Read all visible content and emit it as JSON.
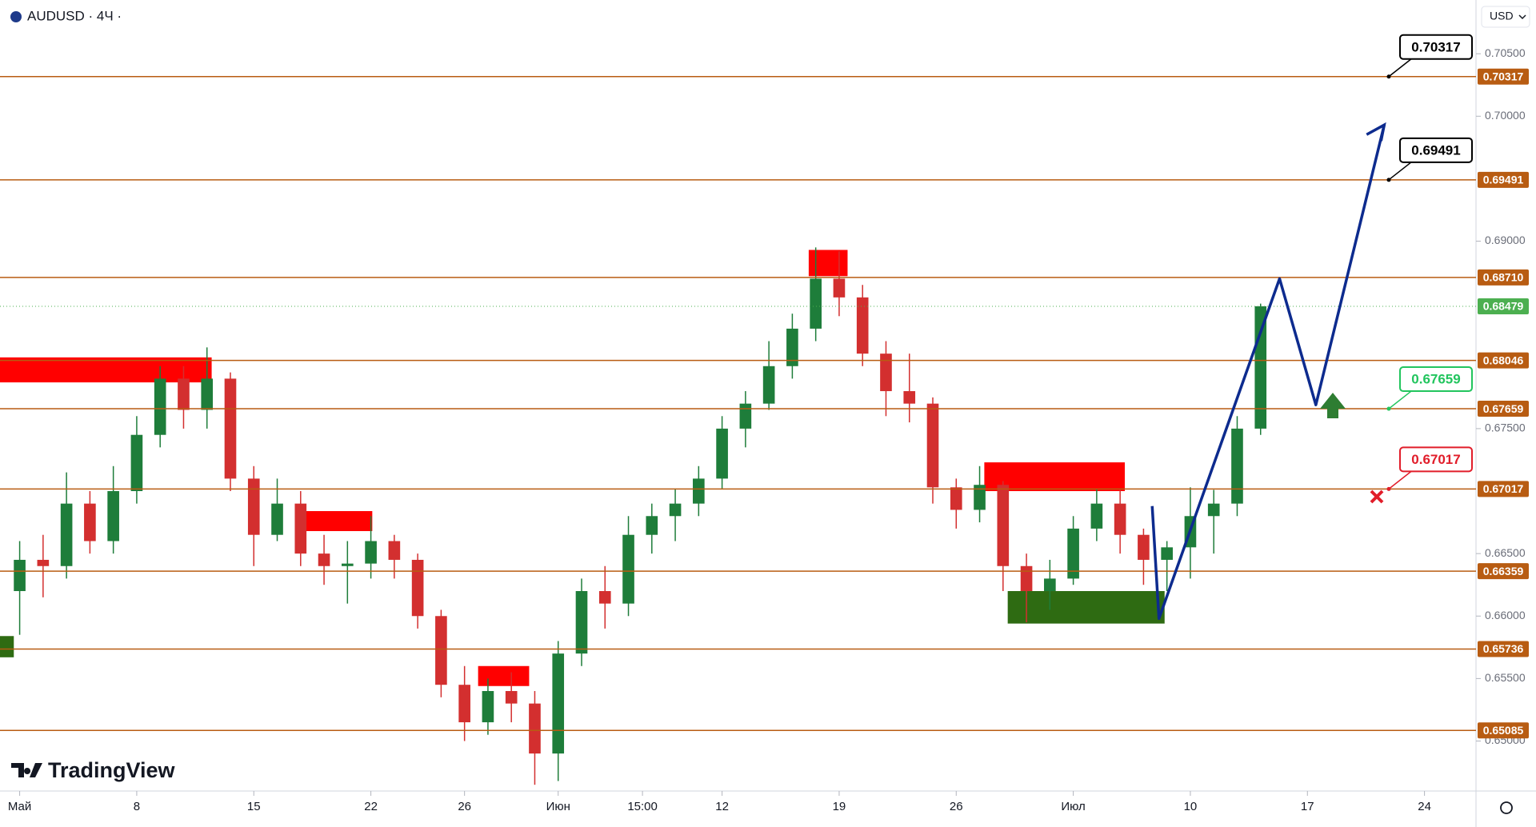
{
  "header": {
    "symbol": "AUDUSD · 4Ч ·",
    "currency": "USD",
    "brand": "TradingView"
  },
  "chart_data": {
    "type": "candlestick",
    "xlim": [
      -0.84,
      62.2
    ],
    "ylim": [
      0.646,
      0.7093
    ],
    "xticks": [
      {
        "value": 0,
        "label": "Май"
      },
      {
        "value": 5,
        "label": "8"
      },
      {
        "value": 10,
        "label": "15"
      },
      {
        "value": 15,
        "label": "22"
      },
      {
        "value": 19,
        "label": "26"
      },
      {
        "value": 23,
        "label": "Июн"
      },
      {
        "value": 26.6,
        "label": "15:00"
      },
      {
        "value": 30,
        "label": "12"
      },
      {
        "value": 35,
        "label": "19"
      },
      {
        "value": 40,
        "label": "26"
      },
      {
        "value": 45,
        "label": "Июл"
      },
      {
        "value": 50,
        "label": "10"
      },
      {
        "value": 55,
        "label": "17"
      },
      {
        "value": 60,
        "label": "24"
      }
    ],
    "yticks": [
      {
        "value": 0.705,
        "label": "0.70500"
      },
      {
        "value": 0.7,
        "label": "0.70000"
      },
      {
        "value": 0.69,
        "label": "0.69000"
      },
      {
        "value": 0.675,
        "label": "0.67500"
      },
      {
        "value": 0.665,
        "label": "0.66500"
      },
      {
        "value": 0.66,
        "label": "0.66000"
      },
      {
        "value": 0.655,
        "label": "0.65500"
      },
      {
        "value": 0.65,
        "label": "0.65000"
      }
    ],
    "up_color": "#1e7d3a",
    "down_color": "#d32f2f",
    "x": [
      0,
      1,
      2,
      3,
      4,
      5,
      6,
      7,
      8,
      9,
      10,
      11,
      12,
      13,
      14,
      15,
      16,
      17,
      18,
      19,
      20,
      21,
      22,
      23,
      24,
      25,
      26,
      27,
      28,
      29,
      30,
      31,
      32,
      33,
      34,
      35,
      36,
      37,
      38,
      39,
      40,
      41,
      42,
      43,
      44,
      45,
      46,
      47,
      48,
      49,
      50,
      51,
      52,
      53
    ],
    "ohlc": [
      [
        0.662,
        0.666,
        0.6585,
        0.6645
      ],
      [
        0.6645,
        0.6665,
        0.6615,
        0.664
      ],
      [
        0.664,
        0.6715,
        0.663,
        0.669
      ],
      [
        0.669,
        0.67,
        0.665,
        0.666
      ],
      [
        0.666,
        0.672,
        0.665,
        0.67
      ],
      [
        0.67,
        0.676,
        0.669,
        0.6745
      ],
      [
        0.6745,
        0.68,
        0.6735,
        0.679
      ],
      [
        0.679,
        0.68,
        0.675,
        0.6765
      ],
      [
        0.6765,
        0.6815,
        0.675,
        0.679
      ],
      [
        0.679,
        0.6795,
        0.67,
        0.671
      ],
      [
        0.671,
        0.672,
        0.664,
        0.6665
      ],
      [
        0.6665,
        0.671,
        0.666,
        0.669
      ],
      [
        0.669,
        0.67,
        0.664,
        0.665
      ],
      [
        0.665,
        0.6665,
        0.6625,
        0.664
      ],
      [
        0.664,
        0.666,
        0.661,
        0.6642
      ],
      [
        0.6642,
        0.668,
        0.663,
        0.666
      ],
      [
        0.666,
        0.6665,
        0.663,
        0.6645
      ],
      [
        0.6645,
        0.665,
        0.659,
        0.66
      ],
      [
        0.66,
        0.6605,
        0.6535,
        0.6545
      ],
      [
        0.6545,
        0.656,
        0.65,
        0.6515
      ],
      [
        0.6515,
        0.655,
        0.6505,
        0.654
      ],
      [
        0.654,
        0.6555,
        0.6515,
        0.653
      ],
      [
        0.653,
        0.654,
        0.6465,
        0.649
      ],
      [
        0.649,
        0.658,
        0.6468,
        0.657
      ],
      [
        0.657,
        0.663,
        0.656,
        0.662
      ],
      [
        0.662,
        0.664,
        0.659,
        0.661
      ],
      [
        0.661,
        0.668,
        0.66,
        0.6665
      ],
      [
        0.6665,
        0.669,
        0.665,
        0.668
      ],
      [
        0.668,
        0.6702,
        0.666,
        0.669
      ],
      [
        0.669,
        0.672,
        0.668,
        0.671
      ],
      [
        0.671,
        0.676,
        0.6702,
        0.675
      ],
      [
        0.675,
        0.678,
        0.6735,
        0.677
      ],
      [
        0.677,
        0.682,
        0.6765,
        0.68
      ],
      [
        0.68,
        0.6842,
        0.679,
        0.683
      ],
      [
        0.683,
        0.6895,
        0.682,
        0.687
      ],
      [
        0.687,
        0.6892,
        0.684,
        0.6855
      ],
      [
        0.6855,
        0.6865,
        0.68,
        0.681
      ],
      [
        0.681,
        0.682,
        0.676,
        0.678
      ],
      [
        0.678,
        0.681,
        0.6755,
        0.677
      ],
      [
        0.677,
        0.6775,
        0.669,
        0.6703
      ],
      [
        0.6703,
        0.671,
        0.667,
        0.6685
      ],
      [
        0.6685,
        0.672,
        0.6675,
        0.6705
      ],
      [
        0.6705,
        0.6708,
        0.662,
        0.664
      ],
      [
        0.664,
        0.665,
        0.6595,
        0.662
      ],
      [
        0.662,
        0.6645,
        0.6605,
        0.663
      ],
      [
        0.663,
        0.668,
        0.6625,
        0.667
      ],
      [
        0.667,
        0.6702,
        0.666,
        0.669
      ],
      [
        0.669,
        0.6701,
        0.665,
        0.6665
      ],
      [
        0.6665,
        0.667,
        0.6625,
        0.6645
      ],
      [
        0.6645,
        0.666,
        0.662,
        0.6655
      ],
      [
        0.6655,
        0.6703,
        0.663,
        0.668
      ],
      [
        0.668,
        0.6701,
        0.665,
        0.669
      ],
      [
        0.669,
        0.676,
        0.668,
        0.675
      ],
      [
        0.675,
        0.685,
        0.6745,
        0.68479
      ]
    ],
    "levels": [
      0.70317,
      0.69491,
      {
        "value": 0.6871,
        "label": "0.68710"
      },
      0.68046,
      0.67659,
      0.67017,
      0.66359,
      0.65736,
      0.65085
    ],
    "level_color": "#b85c12",
    "last_price": 0.68479,
    "last_color": "#4caf50",
    "zones": [
      {
        "x": [
          -0.84,
          8.2
        ],
        "y": [
          0.6787,
          0.6807
        ],
        "color": "#ff0000"
      },
      {
        "x": [
          12.05,
          15.06
        ],
        "y": [
          0.6668,
          0.6684
        ],
        "color": "#ff0000"
      },
      {
        "x": [
          19.58,
          21.76
        ],
        "y": [
          0.6544,
          0.656
        ],
        "color": "#ff0000"
      },
      {
        "x": [
          33.7,
          35.36
        ],
        "y": [
          0.6872,
          0.6893
        ],
        "color": "#ff0000"
      },
      {
        "x": [
          41.2,
          47.2
        ],
        "y": [
          0.67,
          0.6723
        ],
        "color": "#ff0000"
      },
      {
        "x": [
          -0.84,
          -0.25
        ],
        "y": [
          0.6567,
          0.6584
        ],
        "color": "#2e6b12"
      },
      {
        "x": [
          42.2,
          48.9
        ],
        "y": [
          0.6594,
          0.662
        ],
        "color": "#2e6b12"
      }
    ],
    "projection": {
      "color": "#0d2b8e",
      "x": [
        48.37,
        48.66,
        53.81,
        55.36,
        58.28
      ],
      "y": [
        0.6688,
        0.6598,
        0.687,
        0.6769,
        0.6993
      ]
    },
    "callouts": [
      {
        "value": 0.70317,
        "color": "#000000"
      },
      {
        "value": 0.69491,
        "color": "#000000"
      },
      {
        "value": 0.67659,
        "color": "#22c55e"
      },
      {
        "value": 0.67017,
        "color": "#e11d2a"
      }
    ]
  }
}
